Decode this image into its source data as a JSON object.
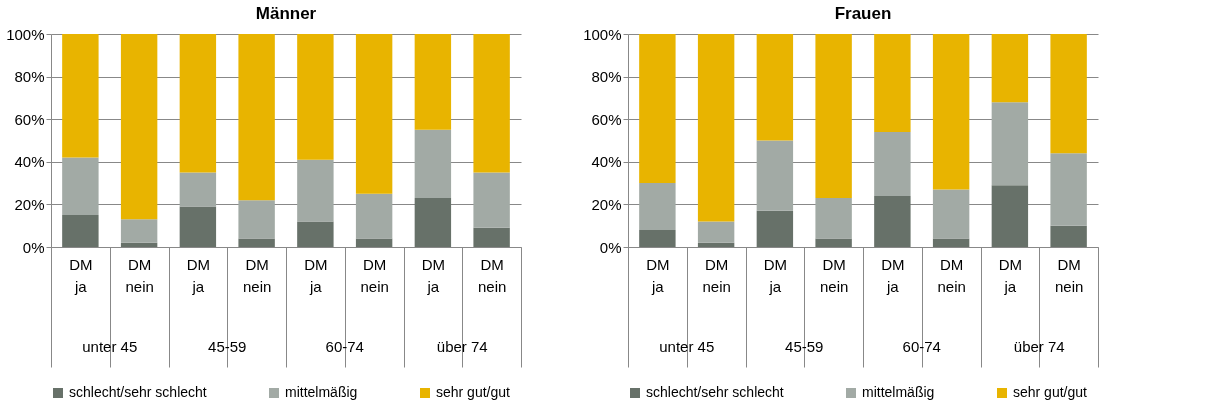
{
  "chart_data": [
    {
      "type": "bar",
      "title": "Männer",
      "stacked": true,
      "legend": "bottom",
      "grid": "y",
      "categories": [
        "DM ja",
        "DM nein",
        "DM ja",
        "DM nein",
        "DM ja",
        "DM nein",
        "DM ja",
        "DM nein"
      ],
      "annotations": [
        "unter 45",
        "45-59",
        "60-74",
        "über 74"
      ],
      "ylim": [
        0,
        100
      ],
      "yticks": [
        {
          "value": 0,
          "label": "0%"
        },
        {
          "value": 20,
          "label": "20%"
        },
        {
          "value": 40,
          "label": "40%"
        },
        {
          "value": 60,
          "label": "60%"
        },
        {
          "value": 80,
          "label": "80%"
        },
        {
          "value": 100,
          "label": "100%"
        }
      ],
      "series": [
        {
          "name": "schlecht/sehr schlecht",
          "color": "#677169",
          "values": [
            15,
            2,
            19,
            4,
            12,
            4,
            23,
            9
          ]
        },
        {
          "name": "mittelmäßig",
          "color": "#a2aaa5",
          "values": [
            27,
            11,
            16,
            18,
            29,
            21,
            32,
            26
          ]
        },
        {
          "name": "sehr gut/gut",
          "color": "#e8b400",
          "values": [
            58,
            87,
            65,
            78,
            59,
            75,
            45,
            65
          ]
        }
      ]
    },
    {
      "type": "bar",
      "title": "Frauen",
      "stacked": true,
      "legend": "bottom",
      "grid": "y",
      "categories": [
        "DM ja",
        "DM nein",
        "DM ja",
        "DM nein",
        "DM ja",
        "DM nein",
        "DM ja",
        "DM nein"
      ],
      "annotations": [
        "unter 45",
        "45-59",
        "60-74",
        "über 74"
      ],
      "ylim": [
        0,
        100
      ],
      "yticks": [
        {
          "value": 0,
          "label": "0%"
        },
        {
          "value": 20,
          "label": "20%"
        },
        {
          "value": 40,
          "label": "40%"
        },
        {
          "value": 60,
          "label": "60%"
        },
        {
          "value": 80,
          "label": "80%"
        },
        {
          "value": 100,
          "label": "100%"
        }
      ],
      "series": [
        {
          "name": "schlecht/sehr schlecht",
          "color": "#677169",
          "values": [
            8,
            2,
            17,
            4,
            24,
            4,
            29,
            10
          ]
        },
        {
          "name": "mittelmäßig",
          "color": "#a2aaa5",
          "values": [
            22,
            10,
            33,
            19,
            30,
            23,
            39,
            34
          ]
        },
        {
          "name": "sehr gut/gut",
          "color": "#e8b400",
          "values": [
            70,
            88,
            50,
            77,
            46,
            73,
            32,
            56
          ]
        }
      ]
    }
  ]
}
